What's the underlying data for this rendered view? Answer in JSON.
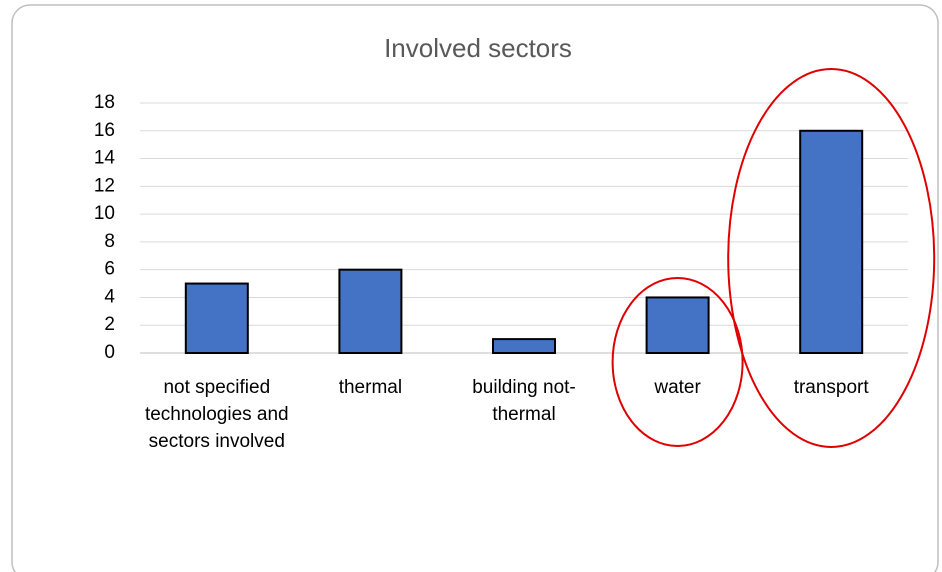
{
  "chart_data": {
    "type": "bar",
    "title": "Involved sectors",
    "categories": [
      "not specified technologies and sectors involved",
      "thermal",
      "building not-thermal",
      "water",
      "transport"
    ],
    "values": [
      5,
      6,
      1,
      4,
      16
    ],
    "color": "#4472c4",
    "ylim": [
      0,
      18
    ],
    "yticks": [
      0,
      2,
      4,
      6,
      8,
      10,
      12,
      14,
      16,
      18
    ],
    "grid": true
  }
}
